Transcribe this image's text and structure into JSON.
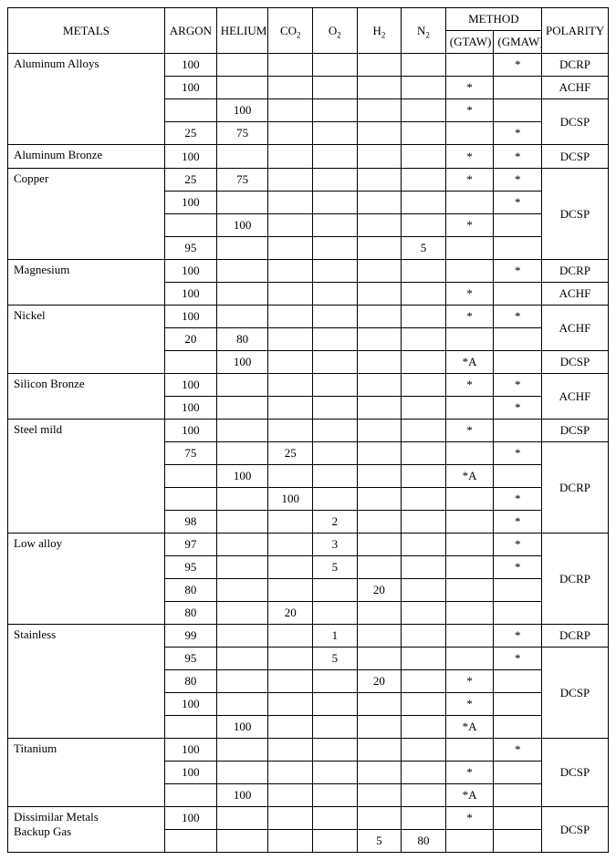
{
  "type": "table",
  "background_color": "#ffffff",
  "border_color": "#000000",
  "font_family": "Times New Roman",
  "font_size_pt": 10,
  "columns": {
    "metals": "METALS",
    "argon": "ARGON",
    "helium": "HELIUM",
    "co2_plain": "CO",
    "co2_sub": "2",
    "o2_plain": "O",
    "o2_sub": "2",
    "h2_plain": "H",
    "h2_sub": "2",
    "n2_plain": "N",
    "n2_sub": "2",
    "method": "METHOD",
    "gtaw": "(GTAW)",
    "gmaw": "(GMAW)",
    "polarity": "POLARITY"
  },
  "metals": {
    "al_alloys": "Aluminum Alloys",
    "al_bronze": "Aluminum Bronze",
    "copper": "Copper",
    "magnesium": "Magnesium",
    "nickel": "Nickel",
    "si_bronze": "Silicon Bronze",
    "steel_mild": "Steel mild",
    "low_alloy": "Low alloy",
    "stainless": "Stainless",
    "titanium": "Titanium",
    "dissimilar_l1": "Dissimilar Metals",
    "dissimilar_l2": "Backup Gas"
  },
  "rows": [
    {
      "ar": "100",
      "he": "",
      "co2": "",
      "o2": "",
      "h2": "",
      "n2": "",
      "gtaw": "",
      "gmaw": "*",
      "pol": "DCRP"
    },
    {
      "ar": "100",
      "he": "",
      "co2": "",
      "o2": "",
      "h2": "",
      "n2": "",
      "gtaw": "*",
      "gmaw": "",
      "pol": "ACHF"
    },
    {
      "ar": "",
      "he": "100",
      "co2": "",
      "o2": "",
      "h2": "",
      "n2": "",
      "gtaw": "*",
      "gmaw": "",
      "pol": ""
    },
    {
      "ar": "25",
      "he": "75",
      "co2": "",
      "o2": "",
      "h2": "",
      "n2": "",
      "gtaw": "",
      "gmaw": "*",
      "pol": ""
    },
    {
      "ar": "100",
      "he": "",
      "co2": "",
      "o2": "",
      "h2": "",
      "n2": "",
      "gtaw": "*",
      "gmaw": "*",
      "pol": "DCSP"
    },
    {
      "ar": "25",
      "he": "75",
      "co2": "",
      "o2": "",
      "h2": "",
      "n2": "",
      "gtaw": "*",
      "gmaw": "*",
      "pol": ""
    },
    {
      "ar": "100",
      "he": "",
      "co2": "",
      "o2": "",
      "h2": "",
      "n2": "",
      "gtaw": "",
      "gmaw": "*",
      "pol": ""
    },
    {
      "ar": "",
      "he": "100",
      "co2": "",
      "o2": "",
      "h2": "",
      "n2": "",
      "gtaw": "*",
      "gmaw": "",
      "pol": ""
    },
    {
      "ar": "95",
      "he": "",
      "co2": "",
      "o2": "",
      "h2": "",
      "n2": "5",
      "gtaw": "",
      "gmaw": "",
      "pol": ""
    },
    {
      "ar": "100",
      "he": "",
      "co2": "",
      "o2": "",
      "h2": "",
      "n2": "",
      "gtaw": "",
      "gmaw": "*",
      "pol": "DCRP"
    },
    {
      "ar": "100",
      "he": "",
      "co2": "",
      "o2": "",
      "h2": "",
      "n2": "",
      "gtaw": "*",
      "gmaw": "",
      "pol": "ACHF"
    },
    {
      "ar": "100",
      "he": "",
      "co2": "",
      "o2": "",
      "h2": "",
      "n2": "",
      "gtaw": "*",
      "gmaw": "*",
      "pol": ""
    },
    {
      "ar": "20",
      "he": "80",
      "co2": "",
      "o2": "",
      "h2": "",
      "n2": "",
      "gtaw": "",
      "gmaw": "",
      "pol": ""
    },
    {
      "ar": "",
      "he": "100",
      "co2": "",
      "o2": "",
      "h2": "",
      "n2": "",
      "gtaw": "*A",
      "gmaw": "",
      "pol": "DCSP"
    },
    {
      "ar": "100",
      "he": "",
      "co2": "",
      "o2": "",
      "h2": "",
      "n2": "",
      "gtaw": "*",
      "gmaw": "*",
      "pol": ""
    },
    {
      "ar": "100",
      "he": "",
      "co2": "",
      "o2": "",
      "h2": "",
      "n2": "",
      "gtaw": "",
      "gmaw": "*",
      "pol": ""
    },
    {
      "ar": "100",
      "he": "",
      "co2": "",
      "o2": "",
      "h2": "",
      "n2": "",
      "gtaw": "*",
      "gmaw": "",
      "pol": "DCSP"
    },
    {
      "ar": "75",
      "he": "",
      "co2": "25",
      "o2": "",
      "h2": "",
      "n2": "",
      "gtaw": "",
      "gmaw": "*",
      "pol": ""
    },
    {
      "ar": "",
      "he": "100",
      "co2": "",
      "o2": "",
      "h2": "",
      "n2": "",
      "gtaw": "*A",
      "gmaw": "",
      "pol": ""
    },
    {
      "ar": "",
      "he": "",
      "co2": "100",
      "o2": "",
      "h2": "",
      "n2": "",
      "gtaw": "",
      "gmaw": "*",
      "pol": ""
    },
    {
      "ar": "98",
      "he": "",
      "co2": "",
      "o2": "2",
      "h2": "",
      "n2": "",
      "gtaw": "",
      "gmaw": "*",
      "pol": ""
    },
    {
      "ar": "97",
      "he": "",
      "co2": "",
      "o2": "3",
      "h2": "",
      "n2": "",
      "gtaw": "",
      "gmaw": "*",
      "pol": ""
    },
    {
      "ar": "95",
      "he": "",
      "co2": "",
      "o2": "5",
      "h2": "",
      "n2": "",
      "gtaw": "",
      "gmaw": "*",
      "pol": ""
    },
    {
      "ar": "80",
      "he": "",
      "co2": "",
      "o2": "",
      "h2": "20",
      "n2": "",
      "gtaw": "",
      "gmaw": "",
      "pol": ""
    },
    {
      "ar": "80",
      "he": "",
      "co2": "20",
      "o2": "",
      "h2": "",
      "n2": "",
      "gtaw": "",
      "gmaw": "",
      "pol": ""
    },
    {
      "ar": "99",
      "he": "",
      "co2": "",
      "o2": "1",
      "h2": "",
      "n2": "",
      "gtaw": "",
      "gmaw": "*",
      "pol": "DCRP"
    },
    {
      "ar": "95",
      "he": "",
      "co2": "",
      "o2": "5",
      "h2": "",
      "n2": "",
      "gtaw": "",
      "gmaw": "*",
      "pol": ""
    },
    {
      "ar": "80",
      "he": "",
      "co2": "",
      "o2": "",
      "h2": "20",
      "n2": "",
      "gtaw": "*",
      "gmaw": "",
      "pol": ""
    },
    {
      "ar": "100",
      "he": "",
      "co2": "",
      "o2": "",
      "h2": "",
      "n2": "",
      "gtaw": "*",
      "gmaw": "",
      "pol": ""
    },
    {
      "ar": "",
      "he": "100",
      "co2": "",
      "o2": "",
      "h2": "",
      "n2": "",
      "gtaw": "*A",
      "gmaw": "",
      "pol": ""
    },
    {
      "ar": "100",
      "he": "",
      "co2": "",
      "o2": "",
      "h2": "",
      "n2": "",
      "gtaw": "",
      "gmaw": "*",
      "pol": ""
    },
    {
      "ar": "100",
      "he": "",
      "co2": "",
      "o2": "",
      "h2": "",
      "n2": "",
      "gtaw": "*",
      "gmaw": "",
      "pol": ""
    },
    {
      "ar": "",
      "he": "100",
      "co2": "",
      "o2": "",
      "h2": "",
      "n2": "",
      "gtaw": "*A",
      "gmaw": "",
      "pol": ""
    },
    {
      "ar": "100",
      "he": "",
      "co2": "",
      "o2": "",
      "h2": "",
      "n2": "",
      "gtaw": "*",
      "gmaw": "",
      "pol": ""
    },
    {
      "ar": "",
      "he": "",
      "co2": "",
      "o2": "",
      "h2": "5",
      "n2": "80",
      "gtaw": "",
      "gmaw": "",
      "pol": ""
    }
  ],
  "polarity_groups": {
    "al_dcsp": "DCSP",
    "cu_dcsp": "DCSP",
    "ni_achf": "ACHF",
    "si_achf": "ACHF",
    "steel_dcrp": "DCRP",
    "low_dcrp": "DCRP",
    "stain_dcsp": "DCSP",
    "ti_dcsp": "DCSP",
    "dis_dcsp": "DCSP"
  }
}
